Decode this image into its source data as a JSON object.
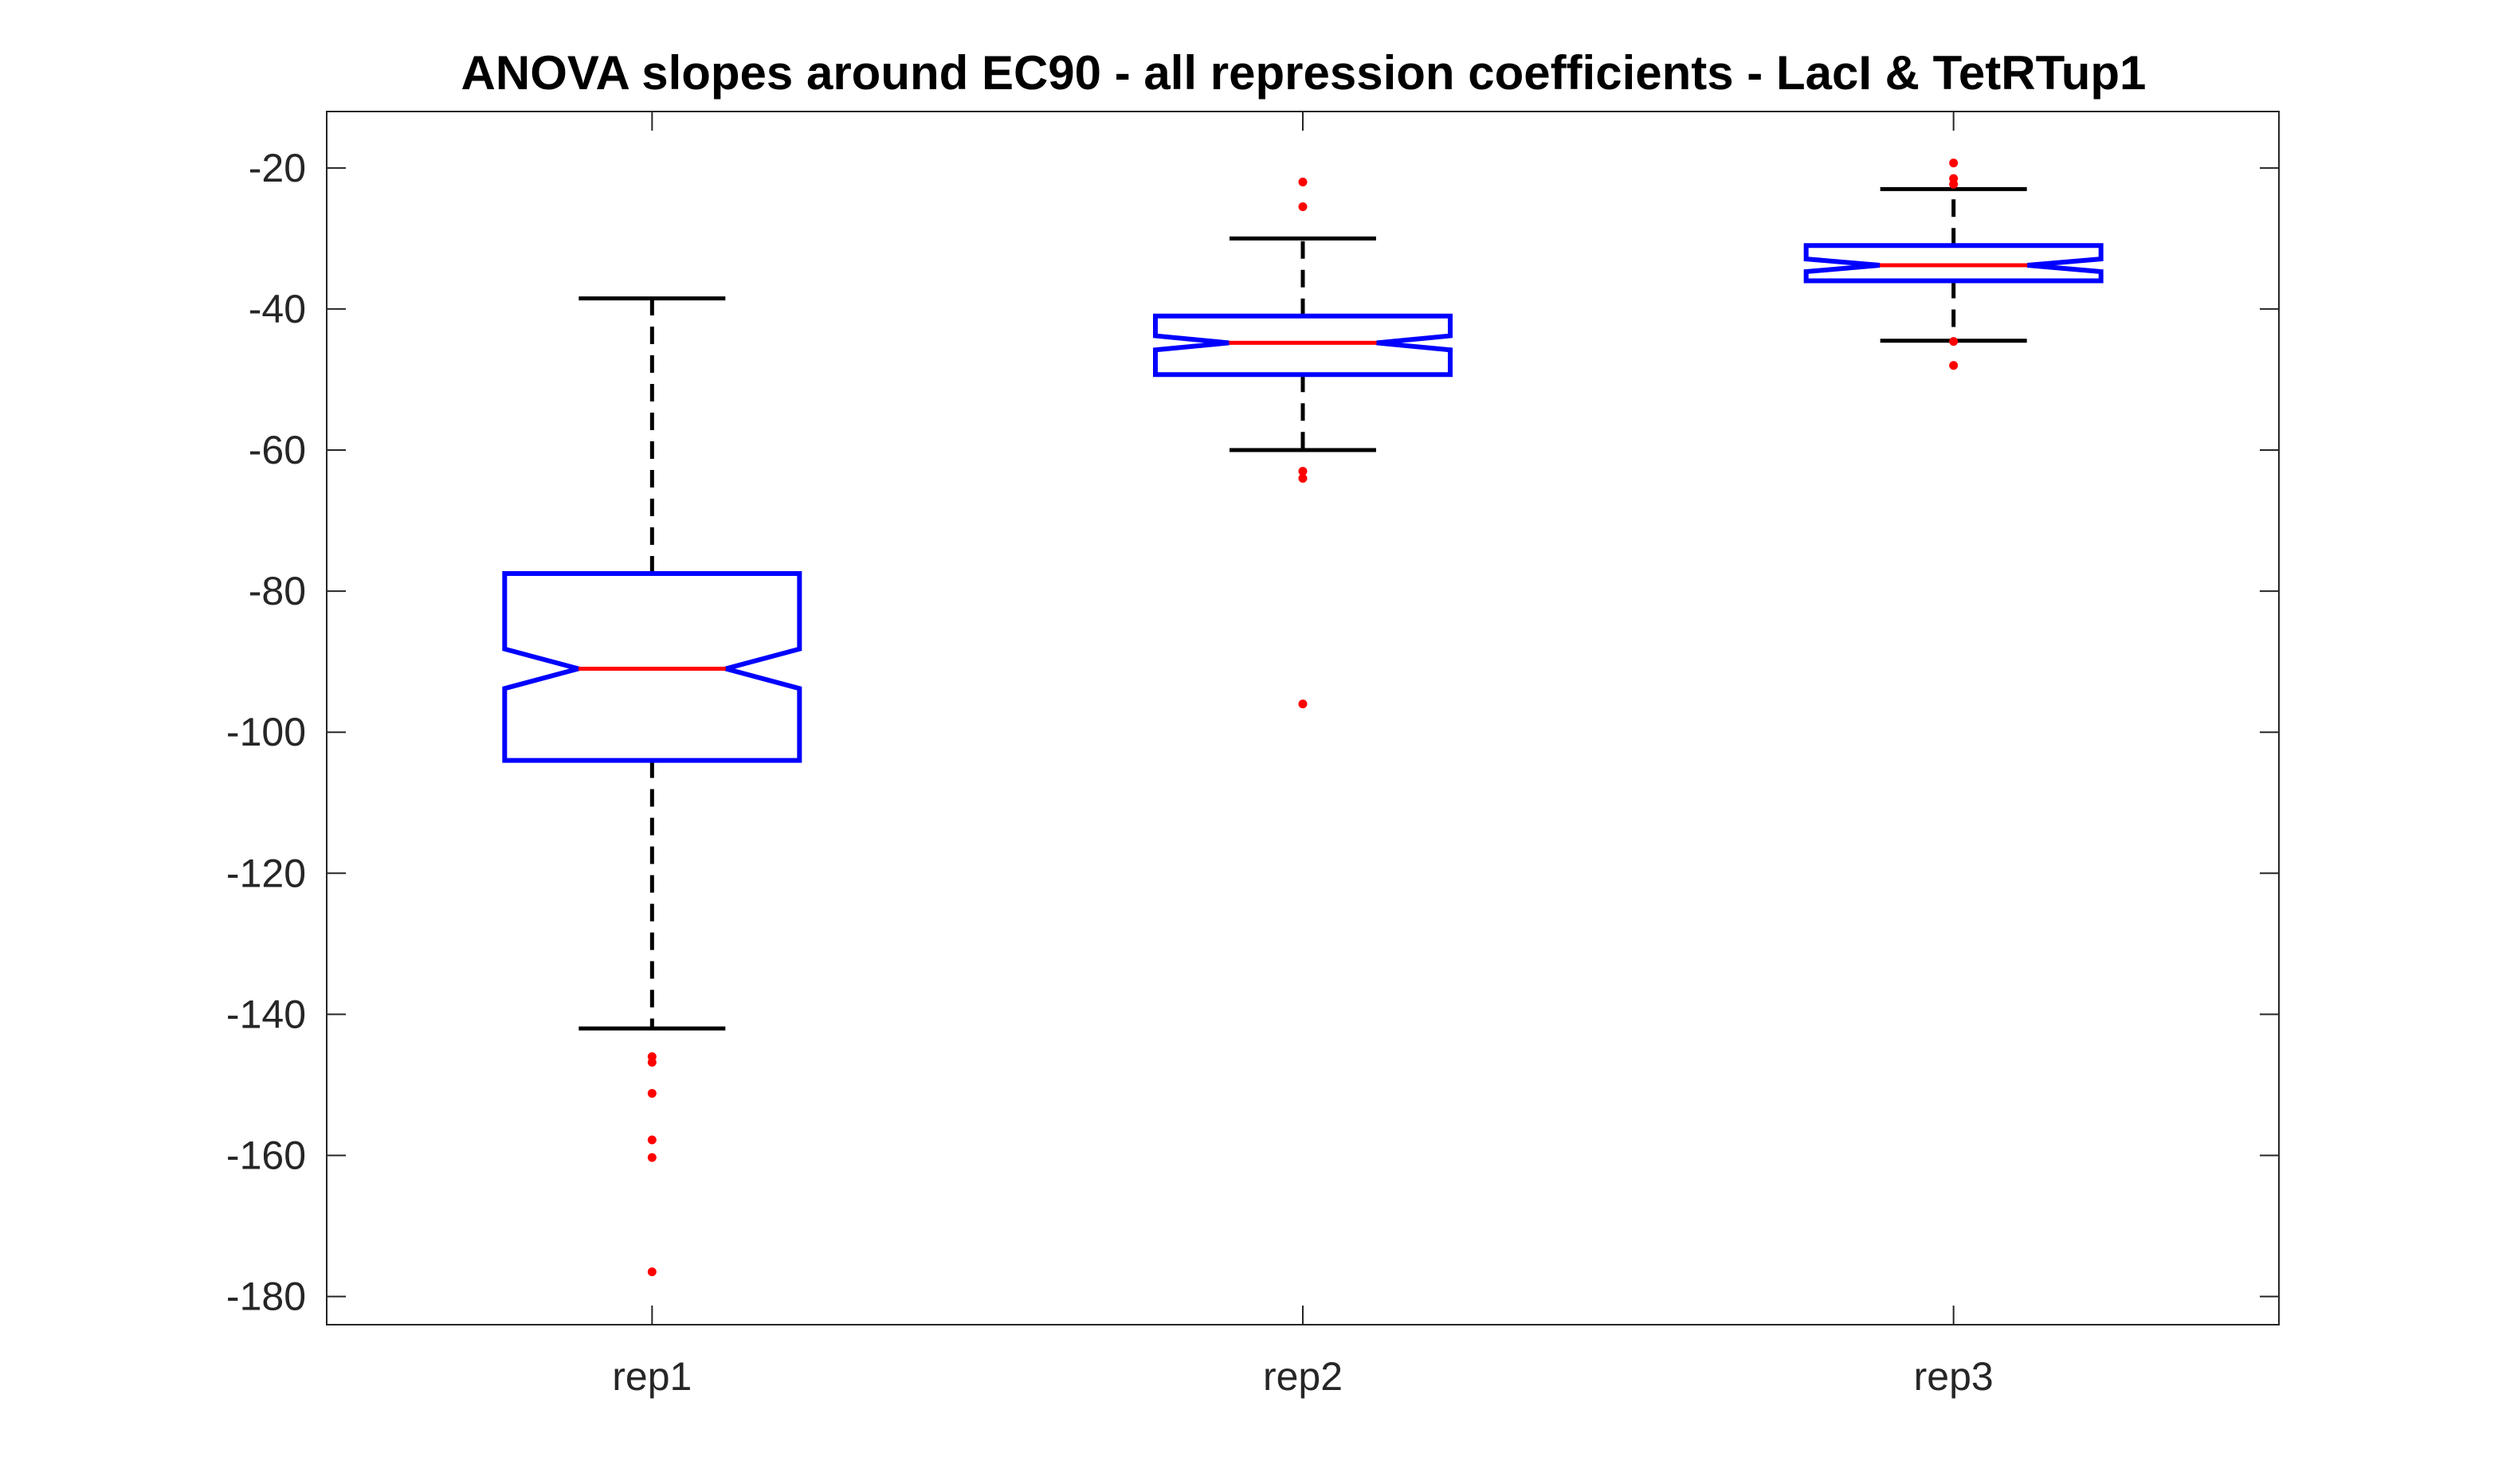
{
  "chart_data": {
    "type": "boxplot",
    "title": "ANOVA slopes around EC90 - all repression coefficients - LacI & TetRTup1",
    "xlabel": "",
    "ylabel": "",
    "categories": [
      "rep1",
      "rep2",
      "rep3"
    ],
    "ylim": [
      -184,
      -12
    ],
    "yticks": [
      -20,
      -40,
      -60,
      -80,
      -100,
      -120,
      -140,
      -160,
      -180
    ],
    "notched": true,
    "grid": false,
    "boxes": [
      {
        "label": "rep1",
        "q1": -104,
        "median": -91,
        "q3": -77.5,
        "notch_low": -93.8,
        "notch_high": -88.2,
        "whisker_low": -142,
        "whisker_high": -38.5,
        "outliers": [
          -146,
          -146.8,
          -151.2,
          -157.8,
          -160.3,
          -176.5
        ]
      },
      {
        "label": "rep2",
        "q1": -49.3,
        "median": -44.8,
        "q3": -41,
        "notch_low": -45.8,
        "notch_high": -43.8,
        "whisker_low": -60,
        "whisker_high": -30,
        "outliers": [
          -22,
          -25.5,
          -63,
          -64,
          -96
        ]
      },
      {
        "label": "rep3",
        "q1": -36,
        "median": -33.8,
        "q3": -31,
        "notch_low": -34.7,
        "notch_high": -32.9,
        "whisker_low": -44.5,
        "whisker_high": -23,
        "outliers": [
          -19.3,
          -21.5,
          -22.3,
          -44.6,
          -48
        ]
      }
    ],
    "colors": {
      "box": "#0000ff",
      "median": "#ff0000",
      "whisker": "#000000",
      "outlier": "#ff0000",
      "axes": "#262626"
    }
  }
}
